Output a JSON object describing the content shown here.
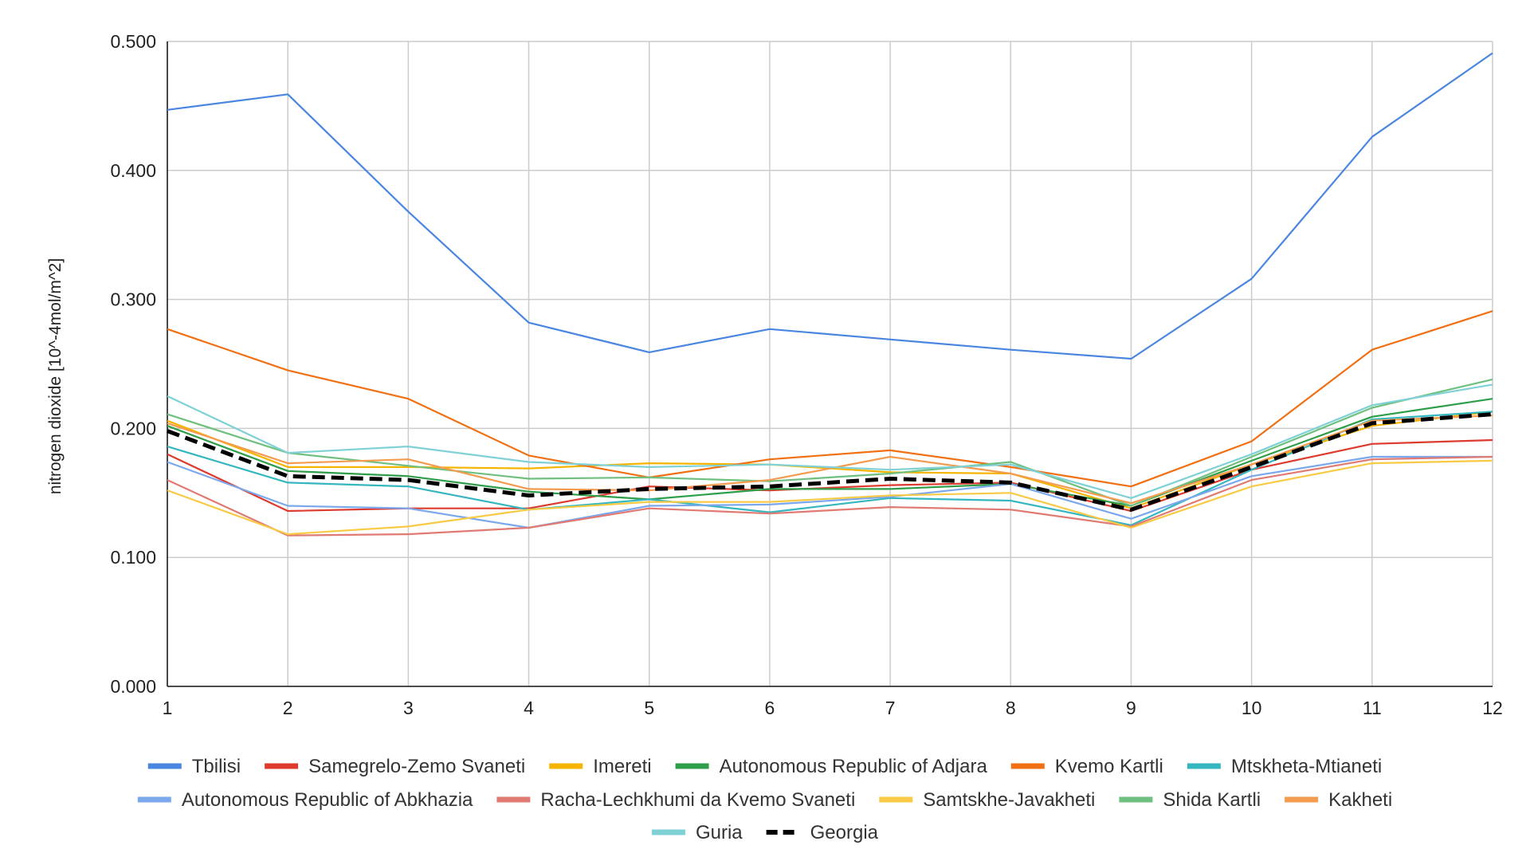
{
  "chart_data": {
    "type": "line",
    "title": "",
    "xlabel": "",
    "ylabel": "nitrogen dioxide [10^-4mol/m^2]",
    "x": [
      1,
      2,
      3,
      4,
      5,
      6,
      7,
      8,
      9,
      10,
      11,
      12
    ],
    "x_tick_labels": [
      "1",
      "2",
      "3",
      "4",
      "5",
      "6",
      "7",
      "8",
      "9",
      "10",
      "11",
      "12"
    ],
    "ylim": [
      0,
      0.5
    ],
    "y_ticks": [
      0,
      0.1,
      0.2,
      0.3,
      0.4,
      0.5
    ],
    "y_tick_labels": [
      "0.000",
      "0.100",
      "0.200",
      "0.300",
      "0.400",
      "0.500"
    ],
    "grid": true,
    "legend_position": "bottom",
    "series": [
      {
        "name": "Tbilisi",
        "color": "#4a86e0",
        "dashed": false,
        "values": [
          0.447,
          0.459,
          0.368,
          0.282,
          0.259,
          0.277,
          0.269,
          0.261,
          0.254,
          0.316,
          0.426,
          0.491
        ]
      },
      {
        "name": "Samegrelo-Zemo Svaneti",
        "color": "#dc3b2e",
        "dashed": false,
        "values": [
          0.18,
          0.136,
          0.138,
          0.138,
          0.155,
          0.152,
          0.156,
          0.158,
          0.136,
          0.168,
          0.188,
          0.191
        ]
      },
      {
        "name": "Imereti",
        "color": "#f5b400",
        "dashed": false,
        "values": [
          0.206,
          0.17,
          0.17,
          0.169,
          0.173,
          0.172,
          0.166,
          0.165,
          0.138,
          0.172,
          0.202,
          0.213
        ]
      },
      {
        "name": "Autonomous Republic of Adjara",
        "color": "#2e9e4a",
        "dashed": false,
        "values": [
          0.202,
          0.167,
          0.163,
          0.151,
          0.145,
          0.153,
          0.153,
          0.157,
          0.14,
          0.175,
          0.209,
          0.223
        ]
      },
      {
        "name": "Kvemo Kartli",
        "color": "#f07013",
        "dashed": false,
        "values": [
          0.277,
          0.245,
          0.223,
          0.179,
          0.162,
          0.176,
          0.183,
          0.17,
          0.155,
          0.19,
          0.261,
          0.291
        ]
      },
      {
        "name": "Mtskheta-Mtianeti",
        "color": "#36b6bf",
        "dashed": false,
        "values": [
          0.186,
          0.158,
          0.155,
          0.137,
          0.145,
          0.135,
          0.146,
          0.144,
          0.125,
          0.168,
          0.207,
          0.213
        ]
      },
      {
        "name": "Autonomous Republic of Abkhazia",
        "color": "#7ba7ec",
        "dashed": false,
        "values": [
          0.174,
          0.14,
          0.138,
          0.123,
          0.14,
          0.141,
          0.147,
          0.157,
          0.13,
          0.163,
          0.178,
          0.178
        ]
      },
      {
        "name": "Racha-Lechkhumi da Kvemo Svaneti",
        "color": "#e07a72",
        "dashed": false,
        "values": [
          0.16,
          0.117,
          0.118,
          0.123,
          0.138,
          0.134,
          0.139,
          0.137,
          0.124,
          0.16,
          0.176,
          0.178
        ]
      },
      {
        "name": "Samtskhe-Javakheti",
        "color": "#f8ca45",
        "dashed": false,
        "values": [
          0.152,
          0.118,
          0.124,
          0.137,
          0.143,
          0.143,
          0.148,
          0.15,
          0.123,
          0.155,
          0.173,
          0.175
        ]
      },
      {
        "name": "Shida Kartli",
        "color": "#6fbf7e",
        "dashed": false,
        "values": [
          0.211,
          0.181,
          0.171,
          0.161,
          0.162,
          0.159,
          0.165,
          0.174,
          0.14,
          0.178,
          0.216,
          0.238
        ]
      },
      {
        "name": "Kakheti",
        "color": "#f39b4e",
        "dashed": false,
        "values": [
          0.204,
          0.173,
          0.176,
          0.153,
          0.152,
          0.16,
          0.178,
          0.165,
          0.142,
          0.172,
          0.206,
          0.21
        ]
      },
      {
        "name": "Guria",
        "color": "#7fd1d6",
        "dashed": false,
        "values": [
          0.225,
          0.181,
          0.186,
          0.174,
          0.17,
          0.172,
          0.168,
          0.172,
          0.146,
          0.18,
          0.218,
          0.234
        ]
      },
      {
        "name": "Georgia",
        "color": "#000000",
        "dashed": true,
        "values": [
          0.198,
          0.163,
          0.16,
          0.148,
          0.153,
          0.155,
          0.161,
          0.158,
          0.137,
          0.17,
          0.204,
          0.211
        ]
      }
    ]
  }
}
